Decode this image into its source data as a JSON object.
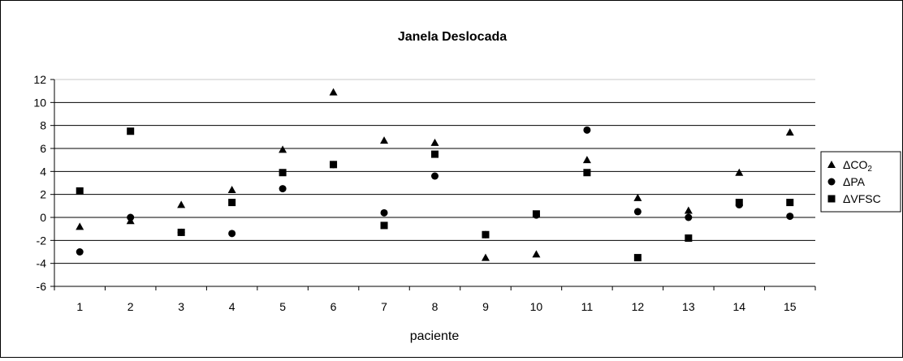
{
  "chart_data": {
    "type": "scatter",
    "title": "Janela Deslocada",
    "xlabel": "paciente",
    "ylabel": "",
    "ylim": [
      -6,
      12
    ],
    "ytick_step": 2,
    "grid": "horizontal",
    "legend_position": "right",
    "categories": [
      "1",
      "2",
      "3",
      "4",
      "5",
      "6",
      "7",
      "8",
      "9",
      "10",
      "11",
      "12",
      "13",
      "14",
      "15"
    ],
    "series": [
      {
        "name": "ΔCO",
        "name_subscript": "2",
        "marker": "triangle",
        "color": "#000000",
        "values": [
          -0.8,
          -0.3,
          1.1,
          2.4,
          5.9,
          10.9,
          6.7,
          6.5,
          -3.5,
          -3.2,
          5.0,
          1.7,
          0.6,
          3.9,
          7.4
        ]
      },
      {
        "name": "ΔPA",
        "marker": "circle",
        "color": "#000000",
        "values": [
          -3.0,
          0.0,
          -1.3,
          -1.4,
          2.5,
          4.6,
          0.4,
          3.6,
          -1.5,
          0.2,
          7.6,
          0.5,
          0.0,
          1.1,
          0.1
        ]
      },
      {
        "name": "ΔVFSC",
        "marker": "square",
        "color": "#000000",
        "values": [
          2.3,
          7.5,
          -1.3,
          1.3,
          3.9,
          4.6,
          -0.7,
          5.5,
          -1.5,
          0.3,
          3.9,
          -3.5,
          -1.8,
          1.3,
          1.3
        ]
      }
    ]
  }
}
